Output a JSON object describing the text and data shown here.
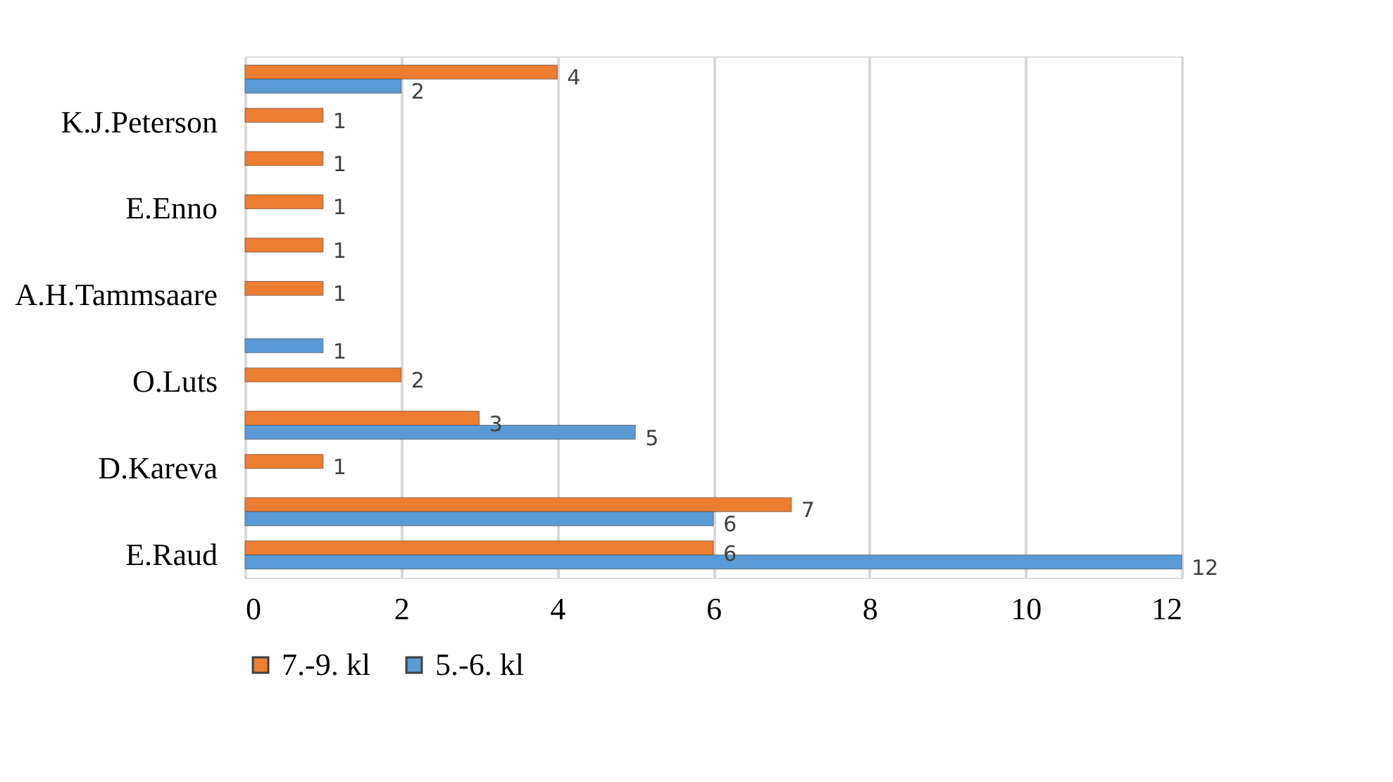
{
  "chart_data": {
    "type": "bar",
    "orientation": "horizontal",
    "categories": [
      null,
      "K.J.Peterson",
      null,
      "E.Enno",
      null,
      "A.H.Tammsaare",
      null,
      "O.Luts",
      null,
      "D.Kareva",
      null,
      "E.Raud"
    ],
    "series": [
      {
        "name": "7.-9. kl",
        "color": "#ed7d31",
        "values": [
          4,
          1,
          1,
          1,
          1,
          1,
          null,
          2,
          3,
          1,
          7,
          6
        ]
      },
      {
        "name": "5.-6. kl",
        "color": "#5b9bd5",
        "values": [
          2,
          null,
          null,
          null,
          null,
          null,
          1,
          null,
          5,
          null,
          6,
          12
        ]
      }
    ],
    "xlim": [
      0,
      12
    ],
    "xticks": [
      0,
      2,
      4,
      6,
      8,
      10,
      12
    ],
    "grid": "x",
    "legend": "bottom",
    "data_labels": true
  }
}
